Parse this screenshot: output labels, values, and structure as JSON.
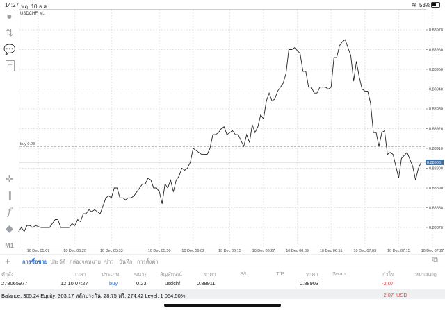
{
  "status_bar": {
    "time": "14:27",
    "date": "พฤ. 10 ธ.ค.",
    "battery": "53%",
    "icons": [
      "wifi-icon",
      "battery-icon"
    ]
  },
  "toolbar": {
    "icons": [
      "account-icon",
      "trade-icon",
      "chat-icon",
      "new-document-icon",
      "crosshair-icon",
      "indicators-icon",
      "function-icon",
      "objects-icon"
    ],
    "timeframe": "M1"
  },
  "chart": {
    "symbol_label": "USDCHF, M1",
    "buy_line_label": "buy 0.23",
    "current_price_label": "0.88903",
    "colors": {
      "line": "#222222",
      "current_price": "#3b6ea5",
      "grid": "#d9d9d9"
    }
  },
  "chart_data": {
    "type": "line",
    "title": "USDCHF, M1",
    "ylim": [
      0.88862,
      0.88979
    ],
    "y_ticks": [
      "0.88970",
      "0.88960",
      "0.88950",
      "0.88940",
      "0.88930",
      "0.88920",
      "0.88910",
      "0.88900",
      "0.88890",
      "0.88880",
      "0.88870"
    ],
    "x_ticks": [
      "10 Dec 05:07",
      "10 Dec 05:20",
      "10 Dec 05:33",
      "10 Dec 05:50",
      "10 Dec 06:02",
      "10 Dec 06:15",
      "10 Dec 06:27",
      "10 Dec 06:39",
      "10 Dec 06:51",
      "10 Dec 07:03",
      "10 Dec 07:15",
      "10 Dec 07:27"
    ],
    "grid": true,
    "horizontal_lines": [
      {
        "label": "buy 0.23",
        "value": 0.88911,
        "style": "dashed"
      },
      {
        "label": "0.88903",
        "value": 0.88903,
        "style": "solid"
      }
    ],
    "series": [
      {
        "x": [
          "05:00",
          "05:01",
          "05:02",
          "05:03",
          "05:04",
          "05:05",
          "05:06",
          "05:08",
          "05:11",
          "05:13",
          "05:14",
          "05:15",
          "05:18",
          "05:19",
          "05:20",
          "05:21",
          "05:22",
          "05:23",
          "05:24",
          "05:25",
          "05:26",
          "05:27",
          "05:29",
          "05:31",
          "05:32",
          "05:33",
          "05:34",
          "05:35",
          "05:36",
          "05:37",
          "05:38",
          "05:39",
          "05:40",
          "05:41",
          "05:44",
          "05:45",
          "05:46",
          "05:47",
          "05:48",
          "05:49",
          "05:50",
          "05:51",
          "05:52",
          "05:53",
          "05:54",
          "05:55",
          "05:56",
          "05:57",
          "05:58",
          "05:59",
          "06:00",
          "06:01",
          "06:02",
          "06:03",
          "06:05",
          "06:07",
          "06:08",
          "06:09",
          "06:10",
          "06:11",
          "06:12",
          "06:13",
          "06:14",
          "06:15",
          "06:16",
          "06:17",
          "06:18",
          "06:20",
          "06:21",
          "06:22",
          "06:23",
          "06:24",
          "06:25",
          "06:26",
          "06:27",
          "06:28",
          "06:29",
          "06:30",
          "06:31",
          "06:32",
          "06:33",
          "06:34",
          "06:35",
          "06:36",
          "06:37",
          "06:38",
          "06:40",
          "06:41",
          "06:42",
          "06:43",
          "06:44",
          "06:45",
          "06:46",
          "06:47",
          "06:49",
          "06:50",
          "06:51",
          "06:52",
          "06:53",
          "06:54",
          "06:55",
          "06:56",
          "06:58",
          "06:59",
          "07:00",
          "07:01",
          "07:02",
          "07:03",
          "07:04",
          "07:05",
          "07:06",
          "07:07",
          "07:08",
          "07:09",
          "07:10",
          "07:11",
          "07:12",
          "07:13",
          "07:15",
          "07:16",
          "07:18",
          "07:20",
          "07:21",
          "07:22",
          "07:23"
        ],
        "y": [
          0.88868,
          0.8887,
          0.88868,
          0.88871,
          0.88871,
          0.8887,
          0.88871,
          0.8887,
          0.8887,
          0.88874,
          0.88874,
          0.8887,
          0.8887,
          0.88872,
          0.88871,
          0.88874,
          0.88873,
          0.88877,
          0.88877,
          0.88879,
          0.88878,
          0.88879,
          0.88877,
          0.88885,
          0.88886,
          0.88885,
          0.8889,
          0.8889,
          0.88885,
          0.88885,
          0.88884,
          0.88885,
          0.88885,
          0.88886,
          0.88892,
          0.88892,
          0.88895,
          0.88894,
          0.8889,
          0.8889,
          0.88888,
          0.88882,
          0.88892,
          0.8889,
          0.88894,
          0.88888,
          0.88894,
          0.88896,
          0.889,
          0.88899,
          0.889,
          0.88903,
          0.8891,
          0.88909,
          0.88907,
          0.88907,
          0.8891,
          0.88917,
          0.88917,
          0.88918,
          0.8892,
          0.88921,
          0.88917,
          0.88918,
          0.88919,
          0.88917,
          0.88917,
          0.88911,
          0.88917,
          0.88913,
          0.88922,
          0.88918,
          0.88921,
          0.88927,
          0.88925,
          0.88934,
          0.88938,
          0.88934,
          0.88935,
          0.88939,
          0.88941,
          0.88943,
          0.88948,
          0.8896,
          0.8896,
          0.88961,
          0.88958,
          0.88949,
          0.88949,
          0.88941,
          0.88941,
          0.88938,
          0.88938,
          0.88941,
          0.88941,
          0.8894,
          0.88941,
          0.88956,
          0.88956,
          0.88962,
          0.88964,
          0.88965,
          0.88957,
          0.88944,
          0.88954,
          0.88946,
          0.8894,
          0.88939,
          0.88939,
          0.88933,
          0.88918,
          0.88918,
          0.88911,
          0.88918,
          0.88919,
          0.88907,
          0.88908,
          0.88907,
          0.88895,
          0.88905,
          0.88908,
          0.88901,
          0.88894,
          0.889,
          0.88903
        ]
      }
    ]
  },
  "tabs": [
    {
      "label": "การซื้อขาย",
      "active": true
    },
    {
      "label": "ประวัติ"
    },
    {
      "label": "กล่องจดหมาย"
    },
    {
      "label": "ข่าว"
    },
    {
      "label": "บันทึก"
    },
    {
      "label": "การตั้งค่า"
    }
  ],
  "table": {
    "headers": [
      "คำสั่ง",
      "เวลา",
      "ประเภท",
      "ขนาด",
      "สัญลักษณ์",
      "ราคา",
      "S/L",
      "T/P",
      "ราคา",
      "Swap",
      "กำไร",
      "หมายเหตุ"
    ],
    "rows": [
      {
        "order": "278065977",
        "time": "12.10 07:27",
        "type": "buy",
        "size": "0.23",
        "symbol": "usdchf",
        "open_price": "0.88911",
        "sl": "",
        "tp": "",
        "price": "0.88903",
        "swap": "",
        "profit": "-2.07",
        "comment": ""
      }
    ]
  },
  "summary": {
    "text": "Balance: 305.24 Equity: 303.17 หลักประกัน: 28.75 ฟรี: 274.42 Level: 1 054.50%",
    "profit": "-2.07",
    "currency": "USD"
  }
}
